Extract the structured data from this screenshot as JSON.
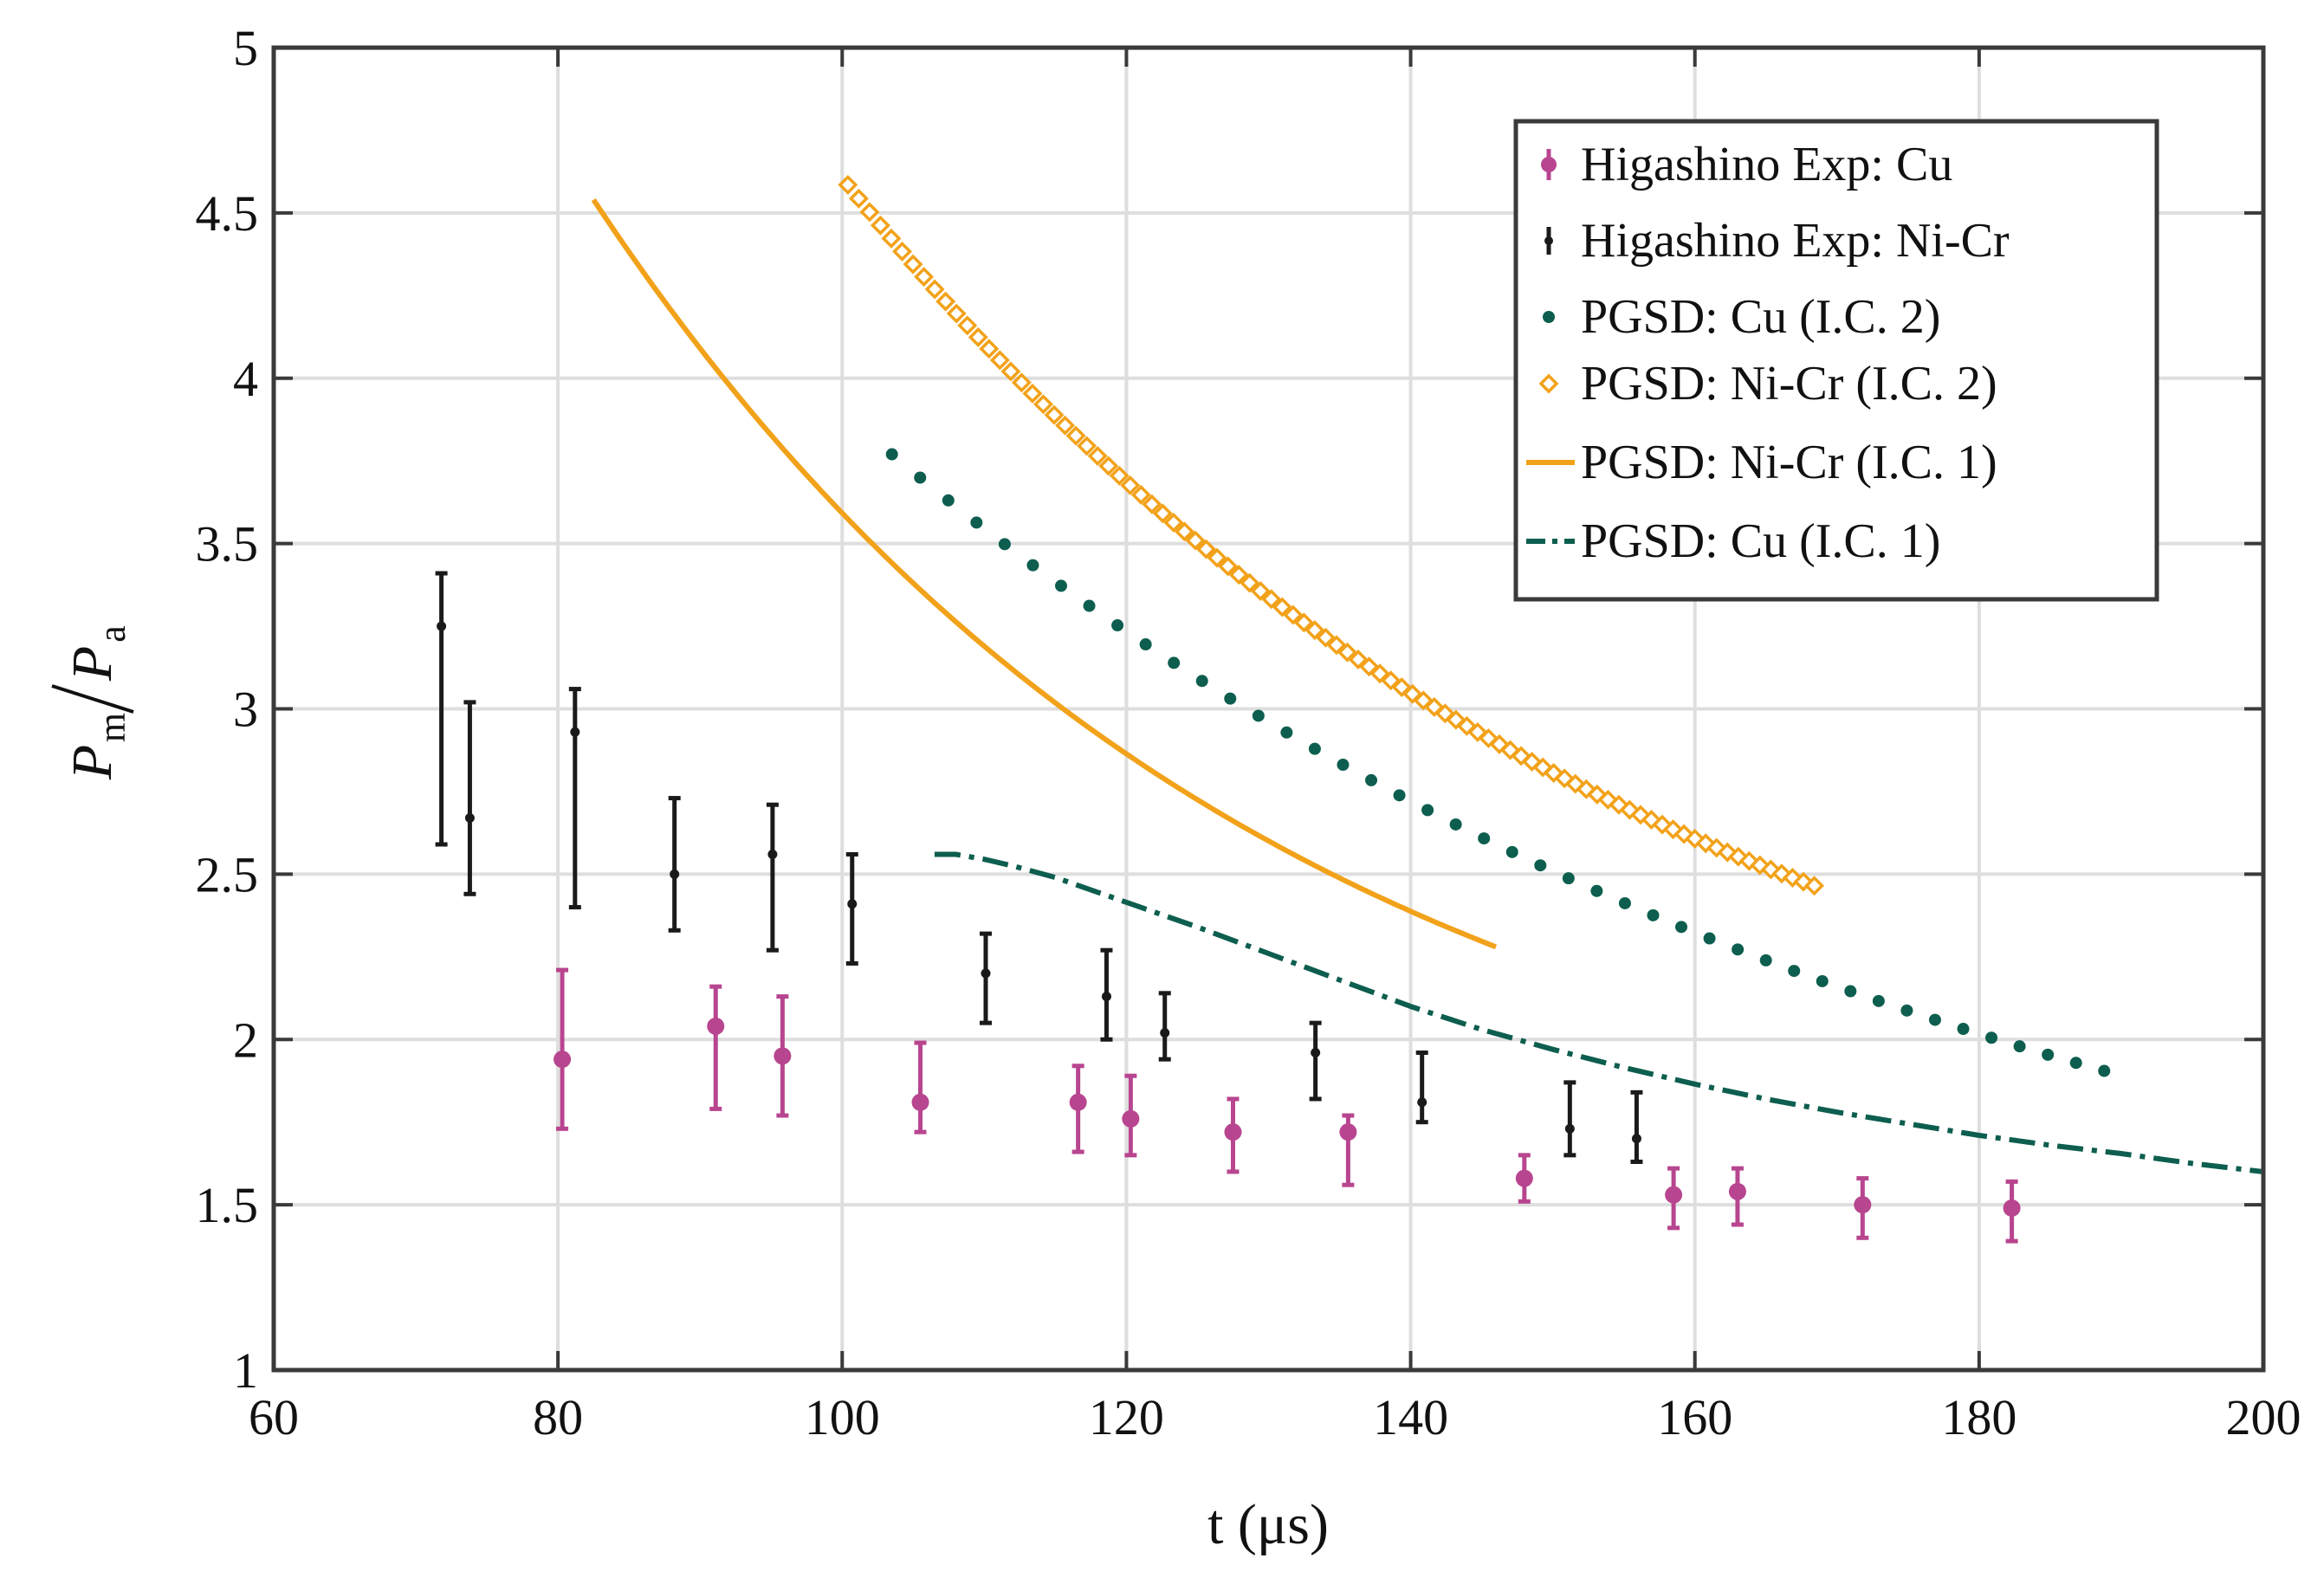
{
  "chart_data": {
    "type": "scatter",
    "title": "",
    "xlabel": "t (μs)",
    "ylabel_main": "P",
    "ylabel_sub_top": "m",
    "ylabel_sub_bottom": "a",
    "xlim": [
      60,
      200
    ],
    "ylim": [
      1,
      5
    ],
    "xticks": [
      60,
      80,
      100,
      120,
      140,
      160,
      180,
      200
    ],
    "yticks": [
      1,
      1.5,
      2,
      2.5,
      3,
      3.5,
      4,
      4.5,
      5
    ],
    "xtick_labels": [
      "60",
      "80",
      "100",
      "120",
      "140",
      "160",
      "180",
      "200"
    ],
    "ytick_labels": [
      "1",
      "1.5",
      "2",
      "2.5",
      "3",
      "3.5",
      "4",
      "4.5",
      "5"
    ],
    "grid": true,
    "legend_position": "top-right",
    "colors": {
      "cu_exp": "#b8458f",
      "nicr_exp": "#1a1a1a",
      "pgsd_cu": "#0d5e4f",
      "pgsd_nicr": "#f2a21a",
      "grid": "#dedede",
      "axes": "#3a3a3a"
    },
    "series": [
      {
        "name": "Higashino Exp: Cu",
        "style": "errorbar-dot",
        "color": "#b8458f",
        "x": [
          80.3,
          91.1,
          95.8,
          105.5,
          116.6,
          120.3,
          127.5,
          135.6,
          148.0,
          158.5,
          163.0,
          171.8,
          182.3
        ],
        "y": [
          1.94,
          2.04,
          1.95,
          1.81,
          1.81,
          1.76,
          1.72,
          1.72,
          1.58,
          1.53,
          1.54,
          1.5,
          1.49
        ],
        "lower": [
          1.73,
          1.79,
          1.77,
          1.72,
          1.66,
          1.65,
          1.6,
          1.56,
          1.51,
          1.43,
          1.44,
          1.4,
          1.39
        ],
        "upper": [
          2.21,
          2.16,
          2.13,
          1.99,
          1.92,
          1.89,
          1.82,
          1.77,
          1.65,
          1.61,
          1.61,
          1.58,
          1.57
        ]
      },
      {
        "name": "Higashino Exp: Ni-Cr",
        "style": "errorbar-small",
        "color": "#1a1a1a",
        "x": [
          71.8,
          73.8,
          81.2,
          88.2,
          95.1,
          100.7,
          110.1,
          118.6,
          122.7,
          133.3,
          140.8,
          151.2,
          155.9
        ],
        "y": [
          3.25,
          2.67,
          2.93,
          2.5,
          2.56,
          2.41,
          2.2,
          2.13,
          2.02,
          1.96,
          1.81,
          1.73,
          1.7
        ],
        "lower": [
          2.59,
          2.44,
          2.4,
          2.33,
          2.27,
          2.23,
          2.05,
          2.0,
          1.94,
          1.82,
          1.75,
          1.65,
          1.63
        ],
        "upper": [
          3.41,
          3.02,
          3.06,
          2.73,
          2.71,
          2.56,
          2.32,
          2.27,
          2.14,
          2.05,
          1.96,
          1.87,
          1.84
        ]
      },
      {
        "name": "PGSD: Cu (I.C. 2)",
        "style": "markers-dot",
        "color": "#0d5e4f",
        "x_start": 103.5,
        "x_end": 188.8,
        "count": 44,
        "curve": {
          "y_at_start": 3.77,
          "y_at_end": 1.905,
          "shape": 1.1
        }
      },
      {
        "name": "PGSD: Ni-Cr (I.C. 2)",
        "style": "markers-diamond",
        "color": "#f2a21a",
        "x_start": 100.4,
        "x_end": 168.4,
        "count": 90,
        "curve": {
          "y_at_start": 4.585,
          "y_at_end": 2.465,
          "shape": 1.25
        }
      },
      {
        "name": "PGSD: Ni-Cr (I.C. 1)",
        "style": "solid-line",
        "color": "#f2a21a",
        "x_start": 82.5,
        "x_end": 146.0,
        "curve": {
          "y_at_start": 4.54,
          "y_at_end": 2.28,
          "shape": 1.35
        }
      },
      {
        "name": "PGSD: Cu (I.C. 1)",
        "style": "dash-dot-line",
        "color": "#0d5e4f",
        "x": [
          106.5,
          108,
          110,
          112,
          115,
          118,
          121,
          125,
          130,
          135,
          140,
          145,
          150,
          155,
          160,
          165,
          170,
          175,
          180,
          185,
          190,
          195,
          200
        ],
        "y": [
          2.56,
          2.56,
          2.545,
          2.525,
          2.49,
          2.445,
          2.4,
          2.34,
          2.26,
          2.18,
          2.1,
          2.03,
          1.97,
          1.915,
          1.865,
          1.82,
          1.78,
          1.745,
          1.71,
          1.68,
          1.655,
          1.625,
          1.6
        ]
      }
    ]
  }
}
